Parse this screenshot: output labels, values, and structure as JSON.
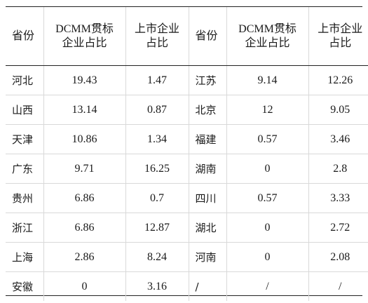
{
  "table": {
    "headers": {
      "province": "省份",
      "dcmm_line1": "DCMM贯标",
      "dcmm_line2": "企业占比",
      "listed_line1": "上市企业",
      "listed_line2": "占比"
    },
    "rows": [
      {
        "left": {
          "province": "河北",
          "dcmm": "19.43",
          "listed": "1.47"
        },
        "right": {
          "province": "江苏",
          "dcmm": "9.14",
          "listed": "12.26"
        }
      },
      {
        "left": {
          "province": "山西",
          "dcmm": "13.14",
          "listed": "0.87"
        },
        "right": {
          "province": "北京",
          "dcmm": "12",
          "listed": "9.05"
        }
      },
      {
        "left": {
          "province": "天津",
          "dcmm": "10.86",
          "listed": "1.34"
        },
        "right": {
          "province": "福建",
          "dcmm": "0.57",
          "listed": "3.46"
        }
      },
      {
        "left": {
          "province": "广东",
          "dcmm": "9.71",
          "listed": "16.25"
        },
        "right": {
          "province": "湖南",
          "dcmm": "0",
          "listed": "2.8"
        }
      },
      {
        "left": {
          "province": "贵州",
          "dcmm": "6.86",
          "listed": "0.7"
        },
        "right": {
          "province": "四川",
          "dcmm": "0.57",
          "listed": "3.33"
        }
      },
      {
        "left": {
          "province": "浙江",
          "dcmm": "6.86",
          "listed": "12.87"
        },
        "right": {
          "province": "湖北",
          "dcmm": "0",
          "listed": "2.72"
        }
      },
      {
        "left": {
          "province": "上海",
          "dcmm": "2.86",
          "listed": "8.24"
        },
        "right": {
          "province": "河南",
          "dcmm": "0",
          "listed": "2.08"
        }
      },
      {
        "left": {
          "province": "安徽",
          "dcmm": "0",
          "listed": "3.16"
        },
        "right": {
          "province": "/",
          "dcmm": "/",
          "listed": "/"
        }
      }
    ]
  }
}
